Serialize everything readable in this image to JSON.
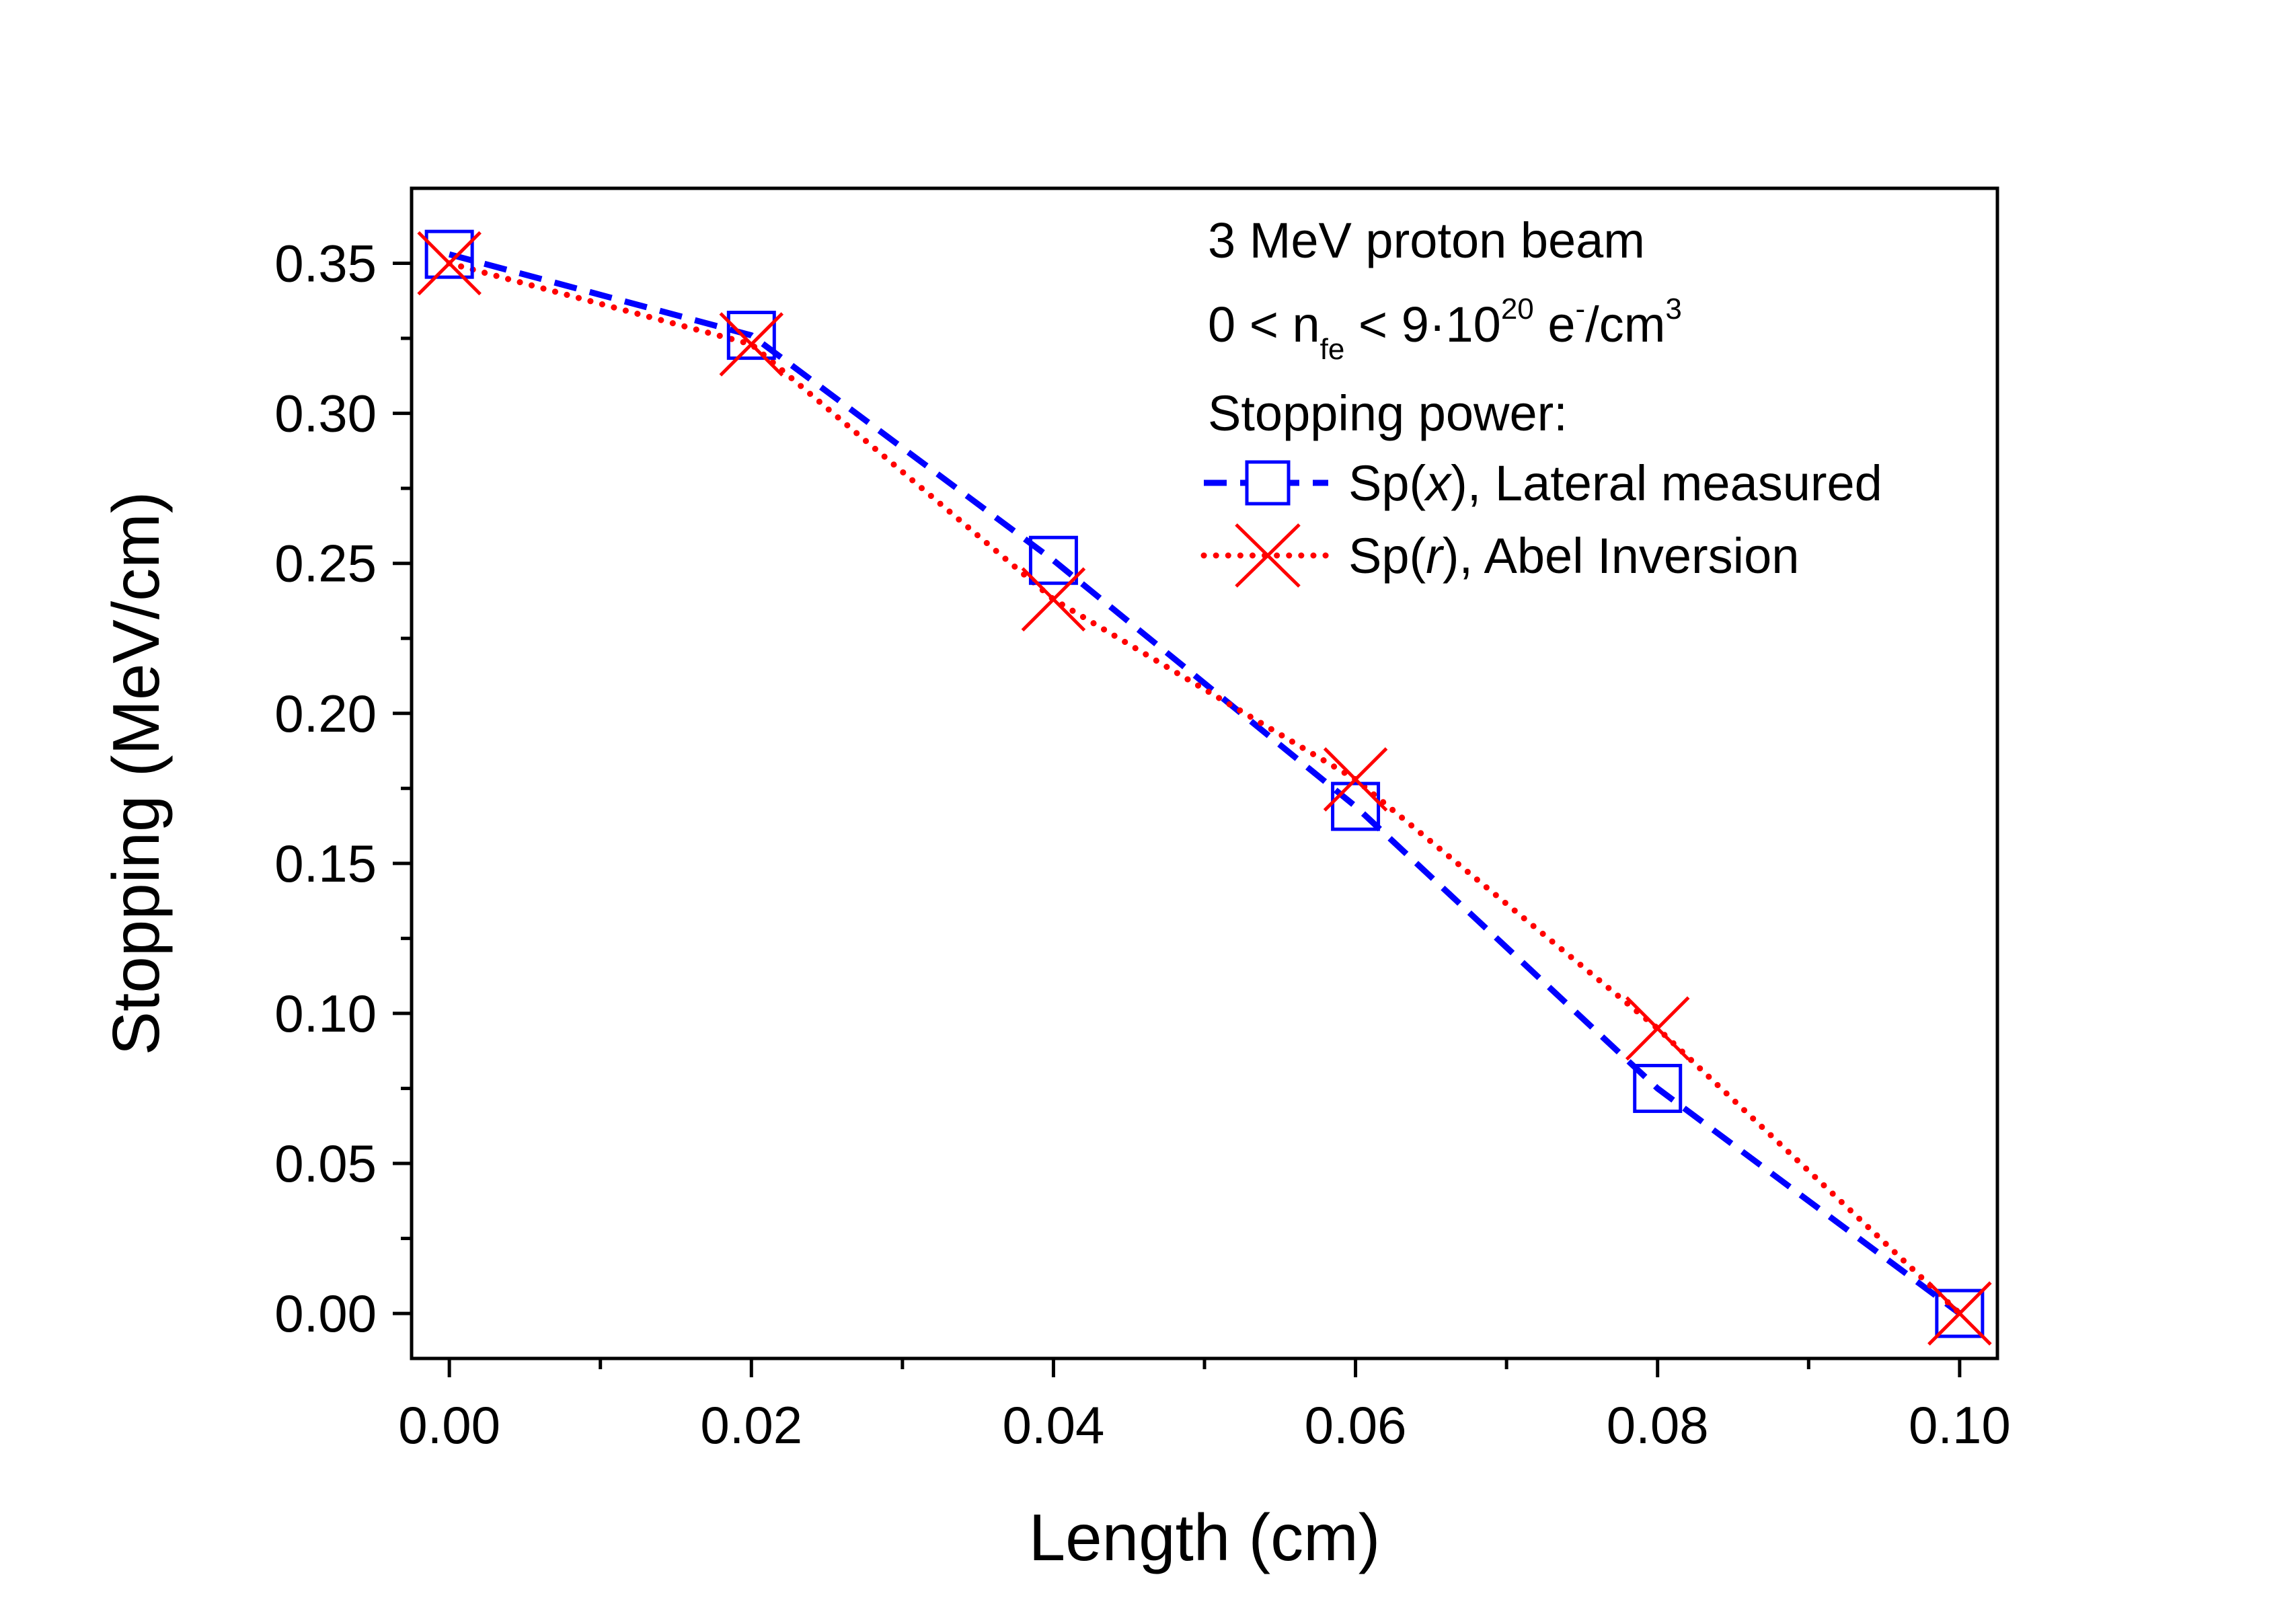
{
  "chart_data": {
    "type": "line",
    "xlabel": "Length (cm)",
    "ylabel": "Stopping (MeV/cm)",
    "xlim": [
      -0.0025,
      0.1025
    ],
    "ylim": [
      -0.015,
      0.375
    ],
    "x_ticks": [
      0.0,
      0.02,
      0.04,
      0.06,
      0.08,
      0.1
    ],
    "x_tick_labels": [
      "0.00",
      "0.02",
      "0.04",
      "0.06",
      "0.08",
      "0.10"
    ],
    "x_minor_ticks": [
      0.01,
      0.03,
      0.05,
      0.07,
      0.09
    ],
    "y_ticks": [
      0.0,
      0.05,
      0.1,
      0.15,
      0.2,
      0.25,
      0.3,
      0.35
    ],
    "y_tick_labels": [
      "0.00",
      "0.05",
      "0.10",
      "0.15",
      "0.20",
      "0.25",
      "0.30",
      "0.35"
    ],
    "y_minor_ticks": [
      0.025,
      0.075,
      0.125,
      0.175,
      0.225,
      0.275,
      0.325
    ],
    "grid": false,
    "x": [
      0.0,
      0.02,
      0.04,
      0.06,
      0.08,
      0.1
    ],
    "series": [
      {
        "name": "Sp(x), Lateral measured",
        "prefix": "Sp(",
        "variable": "x",
        "suffix": "), Lateral measured",
        "values": [
          0.353,
          0.326,
          0.251,
          0.169,
          0.075,
          0.0
        ],
        "color": "#0000ff",
        "marker": "square",
        "line_style": "dashed"
      },
      {
        "name": "Sp(r), Abel Inversion",
        "prefix": "Sp(",
        "variable": "r",
        "suffix": "), Abel Inversion",
        "values": [
          0.35,
          0.323,
          0.238,
          0.178,
          0.095,
          0.0
        ],
        "color": "#ff0000",
        "marker": "cross",
        "line_style": "dotted"
      }
    ],
    "legend": {
      "position": "top-right",
      "line1": "3 MeV proton beam",
      "line2": {
        "a": "0 < n",
        "a_sub": "fe",
        "b": " < 9·10",
        "b_sup": "20",
        "c": " e",
        "c_sup": "-",
        "d": "/cm",
        "d_sup": "3"
      },
      "line3": "Stopping power:"
    }
  }
}
